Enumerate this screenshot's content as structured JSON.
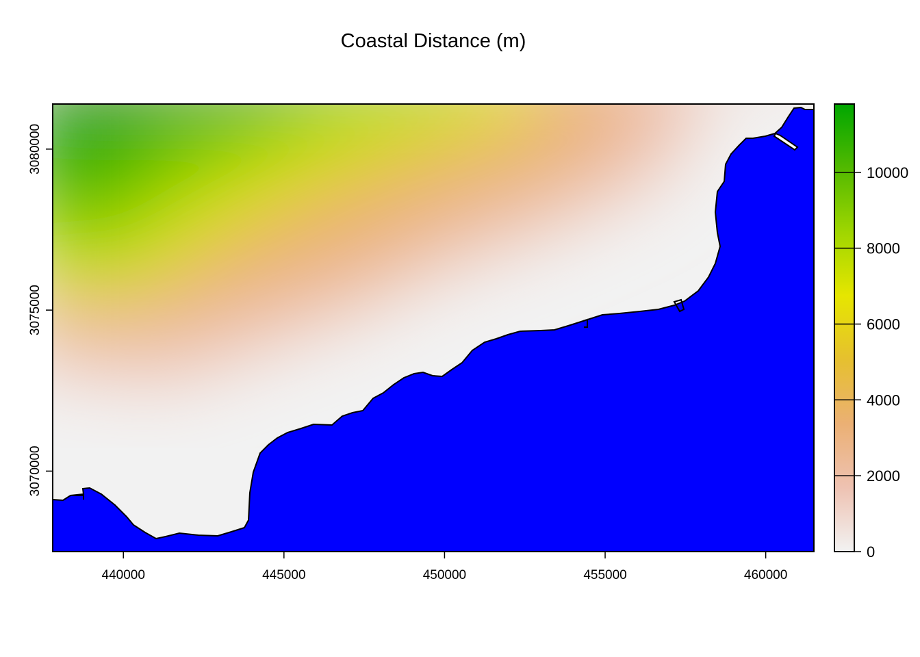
{
  "chart_data": {
    "type": "heatmap",
    "title": "Coastal Distance (m)",
    "xlabel": "",
    "ylabel": "",
    "xlim": [
      437800,
      461500
    ],
    "ylim": [
      3067500,
      3081400
    ],
    "x_ticks": [
      440000,
      445000,
      450000,
      455000,
      460000
    ],
    "y_ticks": [
      3070000,
      3075000,
      3080000
    ],
    "legend": {
      "placement": "right",
      "range": [
        0,
        11800
      ],
      "ticks": [
        0,
        2000,
        4000,
        6000,
        8000,
        10000
      ]
    },
    "colors": {
      "sea": "#0000ff",
      "ramp": [
        "#f2f2f2",
        "#eec2b2",
        "#ebb074",
        "#e6c02f",
        "#e6e600",
        "#9fd600",
        "#52b900",
        "#00a600"
      ]
    }
  }
}
